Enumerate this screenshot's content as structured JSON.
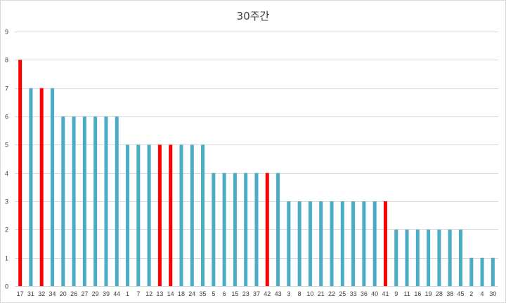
{
  "chart_data": {
    "type": "bar",
    "title": "30주간",
    "xlabel": "",
    "ylabel": "",
    "ylim": [
      0,
      9
    ],
    "yticks": [
      0,
      1,
      2,
      3,
      4,
      5,
      6,
      7,
      8,
      9
    ],
    "grid": true,
    "legend": "none",
    "categories": [
      "17",
      "31",
      "32",
      "34",
      "20",
      "26",
      "27",
      "29",
      "39",
      "44",
      "1",
      "7",
      "12",
      "13",
      "14",
      "18",
      "24",
      "35",
      "5",
      "6",
      "15",
      "23",
      "37",
      "42",
      "43",
      "3",
      "8",
      "10",
      "21",
      "22",
      "25",
      "33",
      "36",
      "40",
      "41",
      "9",
      "11",
      "16",
      "19",
      "28",
      "38",
      "45",
      "2",
      "4",
      "30"
    ],
    "values": [
      8,
      7,
      7,
      7,
      6,
      6,
      6,
      6,
      6,
      6,
      5,
      5,
      5,
      5,
      5,
      5,
      5,
      5,
      4,
      4,
      4,
      4,
      4,
      4,
      4,
      3,
      3,
      3,
      3,
      3,
      3,
      3,
      3,
      3,
      3,
      2,
      2,
      2,
      2,
      2,
      2,
      2,
      1,
      1,
      1
    ],
    "highlighted": [
      "17",
      "32",
      "13",
      "14",
      "42",
      "41"
    ],
    "colors": {
      "default": "#4bacc6",
      "highlight": "#ff0000",
      "grid": "#d9d9d9",
      "text": "#404040"
    }
  }
}
